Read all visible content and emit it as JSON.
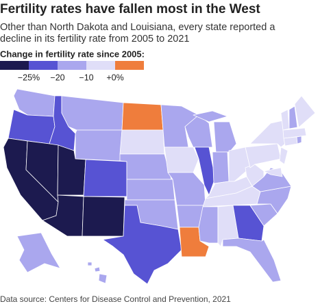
{
  "title": "Fertility rates have fallen most in the West",
  "subtitle": [
    "Other than North Dakota and Louisiana, every state reported a",
    "decline in its fertility rate from 2005 to 2021"
  ],
  "legend": {
    "title": "Change in fertility rate since 2005:",
    "colors": [
      "#1c1a4f",
      "#5753d3",
      "#aaa7ee",
      "#e0def8",
      "#ef7d3c"
    ],
    "labels": [
      "−25%",
      "−20",
      "−10",
      "+0%"
    ]
  },
  "source": "Data source: Centers for Disease Control and Prevention, 2021"
}
